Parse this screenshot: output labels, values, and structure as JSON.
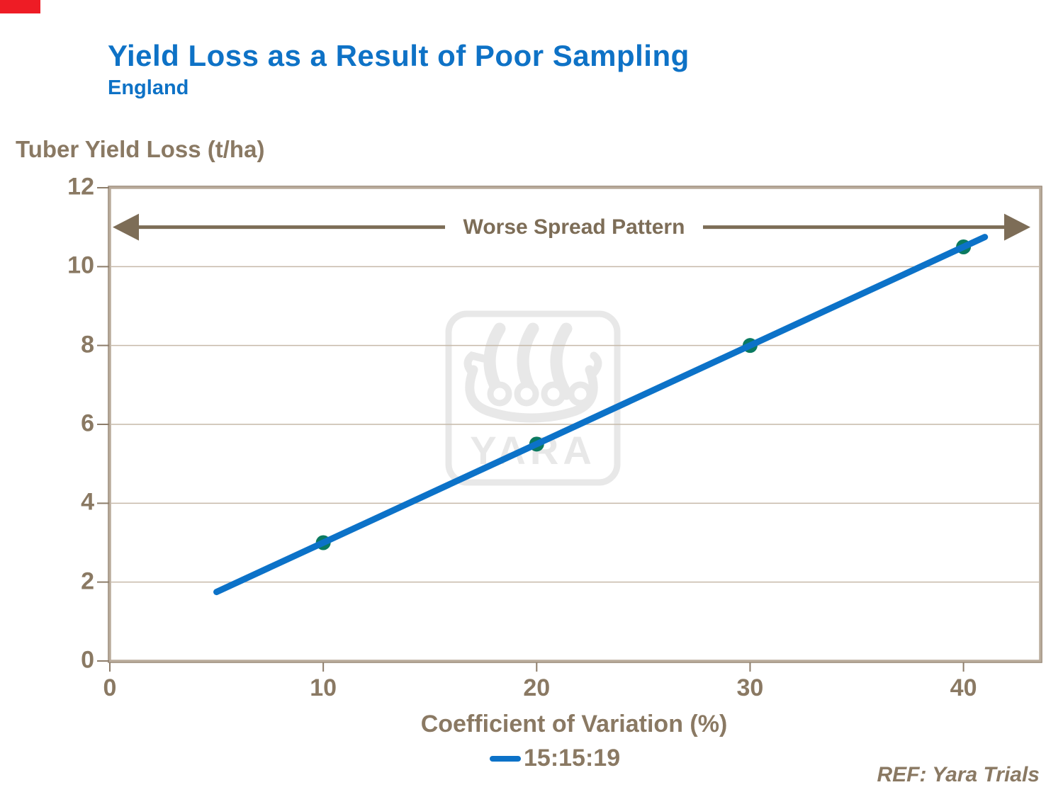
{
  "header": {
    "title": "Yield Loss as a Result of Poor Sampling",
    "subtitle": "England"
  },
  "footer": {
    "ref_label": "REF: Yara Trials"
  },
  "watermark": {
    "label": "YARA",
    "color": "#e8e8e8"
  },
  "colors": {
    "title_blue": "#0e72c6",
    "axis_text": "#8a7963",
    "annotation": "#7d6d57",
    "grid": "#c6b9a9",
    "border_light": "#b9ab9b",
    "border_dark": "#8d7d6a",
    "corner_red": "#ee1c25",
    "line_blue": "#0c72c8",
    "marker_teal": "#0b7a60"
  },
  "chart_data": {
    "type": "line",
    "title": "Yield Loss as a Result of Poor Sampling",
    "subtitle": "England",
    "ylabel": "Tuber Yield Loss (t/ha)",
    "xlabel": "Coefficient of Variation (%)",
    "xlim": [
      0,
      43.6
    ],
    "ylim": [
      0,
      12
    ],
    "x_ticks": [
      0,
      10,
      20,
      30,
      40
    ],
    "y_ticks": [
      0,
      2,
      4,
      6,
      8,
      10,
      12
    ],
    "grid": "horizontal",
    "legend_position": "bottom",
    "series": [
      {
        "name": "15:15:19",
        "color": "#0c72c8",
        "marker_color": "#0b7a60",
        "x": [
          5,
          10,
          20,
          30,
          40,
          41
        ],
        "y": [
          1.75,
          3.0,
          5.5,
          8.0,
          10.5,
          10.75
        ],
        "marker_x": [
          10,
          20,
          30,
          40
        ],
        "marker_y": [
          3.0,
          5.5,
          8.0,
          10.5
        ]
      }
    ],
    "annotation": {
      "text": "Worse Spread Pattern",
      "y": 11.0,
      "arrow": "double-headed"
    }
  }
}
